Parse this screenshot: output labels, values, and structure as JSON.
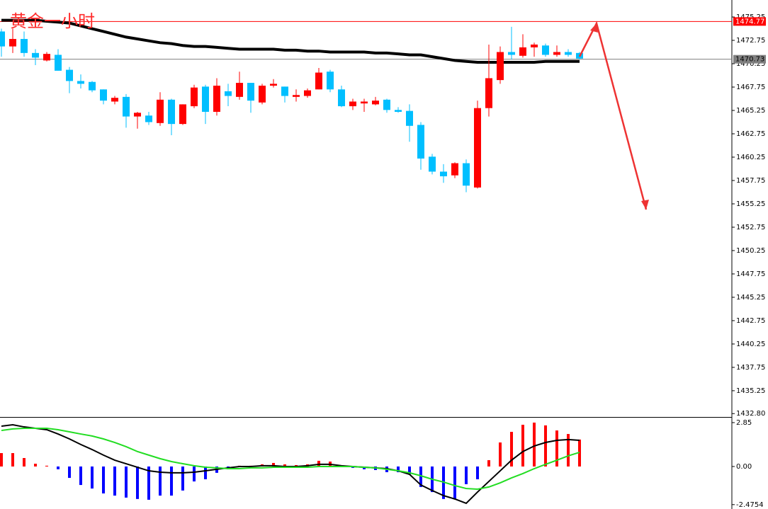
{
  "chart_data": [
    {
      "type": "candlestick",
      "title": "黄金一小时",
      "open": [
        1473.7,
        1472.1,
        1472.9,
        1471.4,
        1470.6,
        1471.2,
        1469.6,
        1468.4,
        1468.3,
        1467.5,
        1466.2,
        1466.7,
        1464.6,
        1464.7,
        1463.9,
        1466.4,
        1463.8,
        1465.7,
        1467.8,
        1465.1,
        1467.3,
        1466.7,
        1468.2,
        1466.1,
        1467.9,
        1467.8,
        1466.7,
        1466.8,
        1467.5,
        1469.4,
        1467.5,
        1465.7,
        1466.0,
        1465.9,
        1466.4,
        1465.3,
        1465.2,
        1463.7,
        1460.3,
        1458.7,
        1458.3,
        1459.6,
        1457.0,
        1465.5,
        1468.5,
        1471.5,
        1471.1,
        1472.0,
        1472.2,
        1471.2,
        1471.5,
        1471.4
      ],
      "high": [
        1474.0,
        1474.0,
        1473.7,
        1471.8,
        1471.5,
        1471.8,
        1469.9,
        1469.1,
        1468.4,
        1467.5,
        1466.8,
        1467.0,
        1465.1,
        1465.1,
        1467.2,
        1466.5,
        1465.9,
        1468.0,
        1468.0,
        1468.7,
        1468.1,
        1469.4,
        1468.2,
        1468.1,
        1468.6,
        1467.8,
        1467.5,
        1467.6,
        1469.8,
        1469.6,
        1467.9,
        1466.5,
        1466.5,
        1466.7,
        1466.5,
        1465.6,
        1465.9,
        1464.0,
        1460.6,
        1459.5,
        1459.7,
        1460.0,
        1466.3,
        1472.3,
        1472.1,
        1474.2,
        1473.4,
        1472.5,
        1472.4,
        1472.2,
        1471.8,
        1471.5
      ],
      "low": [
        1471.0,
        1471.4,
        1471.0,
        1470.1,
        1470.5,
        1469.5,
        1467.1,
        1467.6,
        1467.2,
        1465.9,
        1465.9,
        1463.4,
        1463.3,
        1463.7,
        1463.6,
        1462.6,
        1463.7,
        1465.5,
        1463.8,
        1464.7,
        1465.7,
        1466.4,
        1465.0,
        1465.9,
        1467.7,
        1466.1,
        1466.2,
        1466.6,
        1467.5,
        1467.2,
        1465.6,
        1465.3,
        1465.1,
        1465.8,
        1465.0,
        1465.0,
        1461.9,
        1458.9,
        1458.4,
        1457.5,
        1458.0,
        1456.5,
        1456.9,
        1464.6,
        1468.1,
        1470.7,
        1470.9,
        1471.0,
        1471.0,
        1471.0,
        1471.0,
        1470.7
      ],
      "close": [
        1472.1,
        1472.9,
        1471.4,
        1470.9,
        1471.3,
        1469.5,
        1468.4,
        1468.1,
        1467.4,
        1466.3,
        1466.6,
        1464.6,
        1465.0,
        1464.0,
        1466.4,
        1463.8,
        1465.9,
        1467.7,
        1465.1,
        1467.9,
        1466.8,
        1468.2,
        1466.3,
        1467.9,
        1468.1,
        1466.8,
        1466.9,
        1467.4,
        1469.3,
        1467.5,
        1465.7,
        1466.2,
        1466.2,
        1466.3,
        1465.3,
        1465.1,
        1463.6,
        1460.1,
        1458.7,
        1458.2,
        1459.6,
        1457.2,
        1465.5,
        1468.7,
        1471.5,
        1471.2,
        1472.0,
        1472.3,
        1471.2,
        1471.5,
        1471.2,
        1470.8
      ],
      "ma": {
        "color": "#000000",
        "values": [
          1474.9,
          1474.9,
          1474.9,
          1474.9,
          1474.8,
          1474.7,
          1474.6,
          1474.3,
          1474.0,
          1473.7,
          1473.4,
          1473.1,
          1472.9,
          1472.7,
          1472.5,
          1472.4,
          1472.2,
          1472.1,
          1472.1,
          1472.0,
          1471.9,
          1471.8,
          1471.8,
          1471.8,
          1471.8,
          1471.7,
          1471.7,
          1471.6,
          1471.6,
          1471.5,
          1471.5,
          1471.5,
          1471.5,
          1471.4,
          1471.4,
          1471.3,
          1471.2,
          1471.2,
          1471.0,
          1470.8,
          1470.6,
          1470.5,
          1470.4,
          1470.4,
          1470.4,
          1470.4,
          1470.4,
          1470.4,
          1470.5,
          1470.5,
          1470.5,
          1470.5
        ]
      },
      "up_color": "#ff0000",
      "down_color": "#00bfff",
      "ylim": [
        1432.44,
        1477.07
      ],
      "yticks": [
        1475.25,
        1472.75,
        1470.25,
        1467.75,
        1465.25,
        1462.75,
        1460.25,
        1457.75,
        1455.25,
        1452.75,
        1450.25,
        1447.75,
        1445.25,
        1442.75,
        1440.25,
        1437.75,
        1435.25,
        {
          "value": 1432.8,
          "label": "1432.80"
        }
      ],
      "hlines": [
        {
          "value": 1474.77,
          "color": "#ff0000"
        },
        {
          "value": 1470.73,
          "color": "#808080"
        }
      ]
    },
    {
      "type": "macd",
      "histogram": [
        0.87,
        0.87,
        0.55,
        0.18,
        0.05,
        -0.18,
        -0.74,
        -1.2,
        -1.43,
        -1.75,
        -1.89,
        -2.02,
        -2.11,
        -2.16,
        -1.89,
        -1.89,
        -1.56,
        -0.97,
        -0.83,
        -0.41,
        -0.18,
        0.05,
        0.05,
        0.14,
        0.23,
        0.14,
        0.09,
        0.14,
        0.37,
        0.32,
        0.05,
        -0.09,
        -0.18,
        -0.23,
        -0.37,
        -0.37,
        -0.51,
        -1.33,
        -1.66,
        -2.11,
        -2.11,
        -1.15,
        -0.83,
        0.41,
        1.56,
        2.25,
        2.71,
        2.85,
        2.67,
        2.34,
        2.11,
        1.75
      ],
      "up_color": "#ff0000",
      "down_color": "#0000ff",
      "series": [
        {
          "color": "#000000",
          "values": [
            2.62,
            2.71,
            2.57,
            2.48,
            2.39,
            2.11,
            1.79,
            1.43,
            1.1,
            0.74,
            0.41,
            0.18,
            -0.05,
            -0.28,
            -0.37,
            -0.41,
            -0.41,
            -0.37,
            -0.28,
            -0.18,
            -0.09,
            0,
            0,
            0.05,
            0.05,
            0,
            0,
            0.05,
            0.14,
            0.14,
            0.05,
            0,
            -0.05,
            -0.09,
            -0.14,
            -0.28,
            -0.51,
            -1.2,
            -1.56,
            -1.89,
            -2.11,
            -2.39,
            -1.66,
            -0.97,
            -0.28,
            0.41,
            0.97,
            1.33,
            1.56,
            1.7,
            1.75,
            1.7
          ]
        },
        {
          "color": "#22dd22",
          "values": [
            2.34,
            2.44,
            2.48,
            2.48,
            2.48,
            2.39,
            2.25,
            2.11,
            1.98,
            1.79,
            1.56,
            1.29,
            0.97,
            0.74,
            0.51,
            0.32,
            0.18,
            0.05,
            -0.05,
            -0.09,
            -0.14,
            -0.14,
            -0.09,
            -0.09,
            -0.05,
            -0.05,
            -0.05,
            -0.05,
            0,
            0,
            0,
            0,
            -0.05,
            -0.09,
            -0.18,
            -0.28,
            -0.41,
            -0.6,
            -0.83,
            -1.01,
            -1.24,
            -1.43,
            -1.47,
            -1.33,
            -1.06,
            -0.74,
            -0.46,
            -0.14,
            0.14,
            0.41,
            0.69,
            0.92
          ]
        }
      ],
      "ylim": [
        -2.76,
        3.17
      ],
      "yticks": [
        2.85,
        {
          "value": 0,
          "label": "0.00"
        },
        -2.4754
      ]
    }
  ]
}
